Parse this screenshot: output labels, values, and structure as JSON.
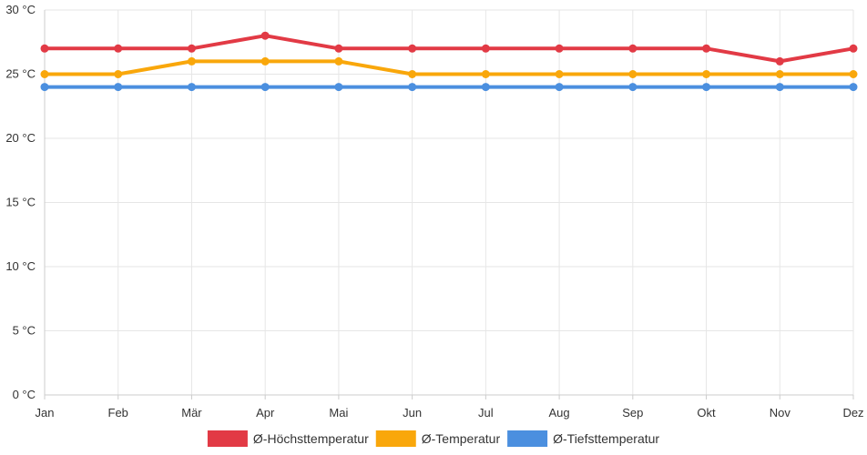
{
  "chart_data": {
    "type": "line",
    "title": "",
    "xlabel": "",
    "ylabel": "",
    "categories": [
      "Jan",
      "Feb",
      "Mär",
      "Apr",
      "Mai",
      "Jun",
      "Jul",
      "Aug",
      "Sep",
      "Okt",
      "Nov",
      "Dez"
    ],
    "ylim": [
      0,
      30
    ],
    "y_ticks": [
      0,
      5,
      10,
      15,
      20,
      25,
      30
    ],
    "y_unit": "°C",
    "y_tick_labels": [
      "0 °C",
      "5 °C",
      "10 °C",
      "15 °C",
      "20 °C",
      "25 °C",
      "30 °C"
    ],
    "grid": true,
    "legend_position": "bottom",
    "series": [
      {
        "name": "Ø-Höchsttemperatur",
        "color": "#e23a45",
        "values": [
          27,
          27,
          27,
          28,
          27,
          27,
          27,
          27,
          27,
          27,
          26,
          27
        ]
      },
      {
        "name": "Ø-Temperatur",
        "color": "#f9a70b",
        "values": [
          25,
          25,
          26,
          26,
          26,
          25,
          25,
          25,
          25,
          25,
          25,
          25
        ]
      },
      {
        "name": "Ø-Tiefsttemperatur",
        "color": "#4b8fdf",
        "values": [
          24,
          24,
          24,
          24,
          24,
          24,
          24,
          24,
          24,
          24,
          24,
          24
        ]
      }
    ]
  }
}
